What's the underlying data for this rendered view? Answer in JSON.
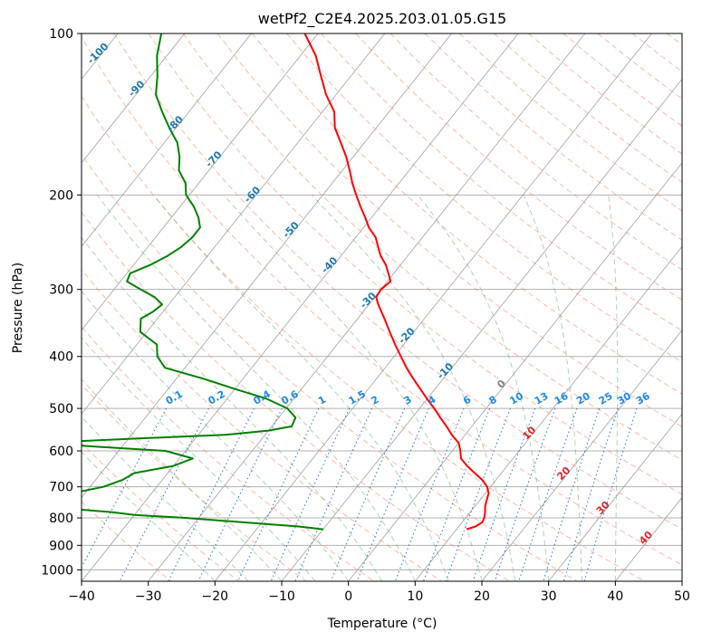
{
  "chart_data": {
    "type": "line",
    "title": "wetPf2_C2E4.2025.203.01.05.G15",
    "xlabel": "Temperature (°C)",
    "ylabel": "Pressure (hPa)",
    "xlim": [
      -40,
      50
    ],
    "ylim": [
      1050,
      100
    ],
    "y_scale": "log",
    "grid": true,
    "x_ticks": [
      "−40",
      "−30",
      "−20",
      "−10",
      "0",
      "10",
      "20",
      "30",
      "40",
      "50"
    ],
    "y_ticks": [
      "100",
      "200",
      "300",
      "400",
      "500",
      "600",
      "700",
      "800",
      "900",
      "1000"
    ],
    "colors": {
      "temperature": "#ff0000",
      "dewpoint": "#008000",
      "isotherm": "#a0a0a0",
      "dry_adiabat": "#ff8060",
      "moist_adiabat": "#60b060",
      "mixing_ratio": "#1e78d2",
      "dry_adiabat_label": "#d62728",
      "isotherm_label": "#1f77b4"
    },
    "isotherm_labels": [
      "-100",
      "-90",
      "-80",
      "-70",
      "-60",
      "-50",
      "-40",
      "-30",
      "-20",
      "-10",
      "0",
      "10",
      "20",
      "30",
      "40"
    ],
    "mixing_ratio_labels": [
      "0.1",
      "0.2",
      "0.4",
      "0.6",
      "1",
      "1.5",
      "2",
      "3",
      "4",
      "6",
      "8",
      "10",
      "13",
      "16",
      "20",
      "25",
      "30",
      "36"
    ],
    "series": [
      {
        "key": "temperature",
        "pressure": [
          840,
          830,
          815,
          800,
          780,
          760,
          740,
          720,
          700,
          680,
          660,
          640,
          620,
          600,
          580,
          560,
          540,
          520,
          500,
          480,
          460,
          440,
          420,
          400,
          380,
          360,
          340,
          320,
          310,
          300,
          290,
          280,
          270,
          260,
          250,
          240,
          230,
          220,
          210,
          200,
          190,
          180,
          170,
          160,
          150,
          140,
          130,
          120,
          110,
          100
        ],
        "temp": [
          11.5,
          12.5,
          13.0,
          12.8,
          12.2,
          11.5,
          11.0,
          10.5,
          9.5,
          8.0,
          6.0,
          4.0,
          2.2,
          1.2,
          0.0,
          -2.0,
          -3.8,
          -5.8,
          -7.8,
          -10.0,
          -12.2,
          -14.5,
          -16.8,
          -19.0,
          -21.3,
          -23.6,
          -26.0,
          -28.6,
          -29.8,
          -30.0,
          -29.5,
          -30.8,
          -32.2,
          -34.0,
          -35.5,
          -37.0,
          -39.2,
          -41.0,
          -43.0,
          -45.0,
          -47.0,
          -48.9,
          -51.0,
          -53.5,
          -56.2,
          -58.2,
          -61.5,
          -64.5,
          -67.7,
          -72.0
        ]
      },
      {
        "key": "dewpoint",
        "pressure": [
          840,
          830,
          820,
          810,
          800,
          790,
          780,
          770,
          760,
          750,
          740,
          730,
          720,
          700,
          680,
          660,
          640,
          620,
          600,
          590,
          580,
          570,
          560,
          550,
          540,
          520,
          500,
          480,
          460,
          440,
          420,
          400,
          380,
          360,
          340,
          330,
          320,
          310,
          300,
          290,
          280,
          270,
          260,
          250,
          240,
          230,
          220,
          210,
          200,
          190,
          180,
          170,
          160,
          150,
          140,
          130,
          120,
          110,
          100
        ],
        "dew": [
          -10.0,
          -14.0,
          -20.0,
          -26.0,
          -32.0,
          -40.0,
          -44.0,
          -50.0,
          -54.0,
          -60.0,
          -66.0,
          -58.0,
          -52.0,
          -48.0,
          -46.0,
          -45.0,
          -40.0,
          -38.0,
          -43.0,
          -53.0,
          -63.0,
          -50.0,
          -36.0,
          -30.0,
          -27.0,
          -27.5,
          -29.8,
          -34.0,
          -40.0,
          -46.0,
          -53.0,
          -55.5,
          -57.0,
          -61.0,
          -62.5,
          -61.5,
          -61.0,
          -63.0,
          -66.0,
          -69.0,
          -69.5,
          -67.5,
          -66.0,
          -65.0,
          -64.5,
          -64.5,
          -66.0,
          -68.0,
          -70.5,
          -72.0,
          -74.5,
          -76.0,
          -78.0,
          -81.0,
          -84.0,
          -87.0,
          -89.0,
          -91.5,
          -93.5
        ]
      }
    ]
  }
}
